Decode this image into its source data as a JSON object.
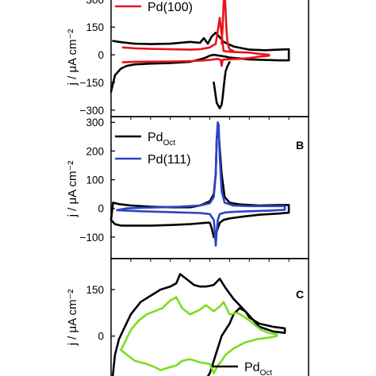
{
  "chart_data": [
    {
      "type": "line",
      "panel_label": "",
      "ylabel": "j / μA cm⁻²",
      "ylim": [
        -335,
        340
      ],
      "yticks": [
        -300,
        -150,
        0,
        150,
        300
      ],
      "grid": false,
      "legend": [
        {
          "name": "Pd(100)",
          "color": "#e8141b"
        }
      ],
      "series": [
        {
          "name": "",
          "color": "#000000",
          "x": [
            0.0,
            0.02,
            0.05,
            0.08,
            0.12,
            0.2,
            0.3,
            0.4,
            0.45,
            0.48,
            0.5,
            0.52,
            0.53,
            0.55,
            0.58,
            0.6,
            0.65,
            0.7,
            0.78,
            0.85,
            0.9,
            0.9,
            0.85,
            0.78,
            0.7,
            0.62,
            0.57,
            0.53,
            0.51,
            0.49,
            0.47,
            0.45,
            0.4,
            0.3,
            0.2,
            0.12,
            0.08,
            0.04,
            0.01
          ],
          "y": [
            -200,
            -110,
            -75,
            -60,
            -52,
            -48,
            -45,
            -38,
            -25,
            -15,
            -5,
            0,
            -2,
            -5,
            -10,
            -15,
            -20,
            -25,
            -28,
            -30,
            -30,
            30,
            28,
            25,
            28,
            45,
            70,
            120,
            100,
            60,
            90,
            65,
            70,
            60,
            58,
            60,
            65,
            70,
            75
          ]
        },
        {
          "name": "Pd(100)",
          "color": "#e8141b",
          "x": [
            0.06,
            0.12,
            0.2,
            0.3,
            0.4,
            0.45,
            0.5,
            0.52,
            0.54,
            0.555,
            0.56,
            0.565,
            0.57,
            0.575,
            0.58,
            0.6,
            0.65,
            0.7,
            0.75,
            0.8,
            0.8,
            0.75,
            0.7,
            0.62,
            0.57,
            0.55,
            0.53,
            0.5,
            0.45,
            0.4,
            0.3,
            0.2,
            0.12,
            0.06
          ],
          "y": [
            -40,
            -38,
            -37,
            -36,
            -34,
            -32,
            -28,
            -25,
            -22,
            -28,
            -60,
            -28,
            -26,
            -26,
            -25,
            -24,
            -22,
            -18,
            -10,
            -5,
            0,
            5,
            12,
            15,
            20,
            200,
            60,
            40,
            30,
            28,
            30,
            32,
            35,
            40
          ]
        },
        {
          "name": "",
          "color": "#000000",
          "x": [
            0.52,
            0.535,
            0.55,
            0.56,
            0.565,
            0.57,
            0.575,
            0.58,
            0.59,
            0.6
          ],
          "y": [
            -150,
            -260,
            -290,
            -270,
            -230,
            -180,
            -130,
            -90,
            -60,
            -40
          ]
        },
        {
          "name": "",
          "color": "#e8141b",
          "x": [
            0.56,
            0.565,
            0.57,
            0.575,
            0.58,
            0.585,
            0.59,
            0.6,
            0.62
          ],
          "y": [
            60,
            150,
            280,
            330,
            240,
            120,
            60,
            30,
            20
          ]
        }
      ]
    },
    {
      "type": "line",
      "panel_label": "B",
      "ylabel": "j / μA cm⁻²",
      "ylim": [
        -175,
        320
      ],
      "yticks": [
        -100,
        0,
        100,
        200,
        300
      ],
      "grid": false,
      "legend": [
        {
          "name": "Pd",
          "sub": "Oct",
          "color": "#000000"
        },
        {
          "name": "Pd(111)",
          "color": "#2c44c4"
        }
      ],
      "series": [
        {
          "name": "Pd",
          "color": "#000000",
          "x": [
            0.0,
            0.02,
            0.05,
            0.1,
            0.2,
            0.3,
            0.4,
            0.45,
            0.48,
            0.5,
            0.51,
            0.52,
            0.53,
            0.54,
            0.55,
            0.57,
            0.6,
            0.65,
            0.75,
            0.85,
            0.9,
            0.9,
            0.85,
            0.75,
            0.65,
            0.6,
            0.575,
            0.56,
            0.545,
            0.54,
            0.535,
            0.53,
            0.52,
            0.5,
            0.45,
            0.4,
            0.3,
            0.2,
            0.1,
            0.04,
            0.01,
            0.0
          ],
          "y": [
            -40,
            -55,
            -60,
            -60,
            -60,
            -58,
            -55,
            -52,
            -50,
            -50,
            -70,
            -100,
            -90,
            -70,
            -50,
            -40,
            -35,
            -30,
            -22,
            -18,
            -15,
            12,
            12,
            10,
            14,
            20,
            40,
            120,
            260,
            280,
            240,
            120,
            50,
            25,
            10,
            4,
            4,
            6,
            10,
            15,
            20,
            -40
          ]
        },
        {
          "name": "Pd(111)",
          "color": "#2c44c4",
          "x": [
            0.03,
            0.08,
            0.15,
            0.25,
            0.35,
            0.45,
            0.5,
            0.52,
            0.525,
            0.53,
            0.535,
            0.54,
            0.55,
            0.58,
            0.62,
            0.7,
            0.8,
            0.88,
            0.88,
            0.8,
            0.7,
            0.62,
            0.575,
            0.56,
            0.55,
            0.545,
            0.54,
            0.535,
            0.53,
            0.52,
            0.5,
            0.45,
            0.35,
            0.25,
            0.15,
            0.08,
            0.03
          ],
          "y": [
            -6,
            -8,
            -10,
            -12,
            -14,
            -16,
            -20,
            -40,
            -80,
            -130,
            -80,
            -40,
            -20,
            -14,
            -12,
            -10,
            -8,
            -5,
            8,
            8,
            8,
            10,
            20,
            60,
            180,
            290,
            300,
            240,
            120,
            40,
            18,
            10,
            6,
            4,
            2,
            0,
            -6
          ]
        }
      ]
    },
    {
      "type": "line",
      "panel_label": "C",
      "ylabel": "j / μA cm⁻²",
      "ylim": [
        -175,
        250
      ],
      "yticks": [
        -150,
        0,
        150
      ],
      "grid": false,
      "legend": [
        {
          "name": "Pd",
          "sub": "Oct",
          "color": "#000000"
        }
      ],
      "series": [
        {
          "name": "Pd",
          "color": "#000000",
          "x": [
            0.0,
            0.01,
            0.02,
            0.04,
            0.07,
            0.1,
            0.15,
            0.2,
            0.25,
            0.3,
            0.33,
            0.35,
            0.38,
            0.42,
            0.45,
            0.48,
            0.5,
            0.52,
            0.55,
            0.58,
            0.62,
            0.68,
            0.75,
            0.82,
            0.88,
            0.88,
            0.82,
            0.75,
            0.7,
            0.68,
            0.65,
            0.62,
            0.6,
            0.56,
            0.52,
            0.5,
            0.48,
            0.45,
            0.42,
            0.38,
            0.36,
            0.34,
            0.32,
            0.3,
            0.25,
            0.2,
            0.15,
            0.1,
            0.05,
            0.02,
            0.0
          ],
          "y": [
            -180,
            -120,
            -60,
            -10,
            30,
            70,
            110,
            130,
            150,
            160,
            170,
            200,
            185,
            165,
            160,
            160,
            162,
            165,
            185,
            155,
            120,
            80,
            30,
            15,
            10,
            25,
            30,
            40,
            60,
            80,
            90,
            70,
            40,
            0,
            -80,
            -120,
            -140,
            -150,
            -160,
            -165,
            -170,
            -165,
            -150,
            -140,
            -135,
            -145,
            -160,
            -170,
            -175,
            -178,
            -180
          ]
        },
        {
          "name": "",
          "color": "#7ddc1f",
          "x": [
            0.05,
            0.08,
            0.12,
            0.18,
            0.22,
            0.25,
            0.3,
            0.33,
            0.36,
            0.4,
            0.45,
            0.5,
            0.52,
            0.54,
            0.56,
            0.58,
            0.62,
            0.68,
            0.74,
            0.8,
            0.84,
            0.84,
            0.8,
            0.76,
            0.72,
            0.68,
            0.64,
            0.6,
            0.57,
            0.55,
            0.52,
            0.5,
            0.48,
            0.45,
            0.4,
            0.36,
            0.33,
            0.3,
            0.26,
            0.22,
            0.18,
            0.14,
            0.1,
            0.07,
            0.05
          ],
          "y": [
            -45,
            -60,
            -80,
            -90,
            -100,
            -110,
            -100,
            -95,
            -80,
            -75,
            -85,
            -90,
            -120,
            -95,
            -80,
            -60,
            -40,
            -20,
            -10,
            -5,
            0,
            5,
            10,
            20,
            40,
            60,
            75,
            70,
            110,
            95,
            80,
            90,
            100,
            85,
            70,
            90,
            125,
            115,
            90,
            80,
            70,
            50,
            20,
            -20,
            -45
          ]
        }
      ]
    }
  ]
}
